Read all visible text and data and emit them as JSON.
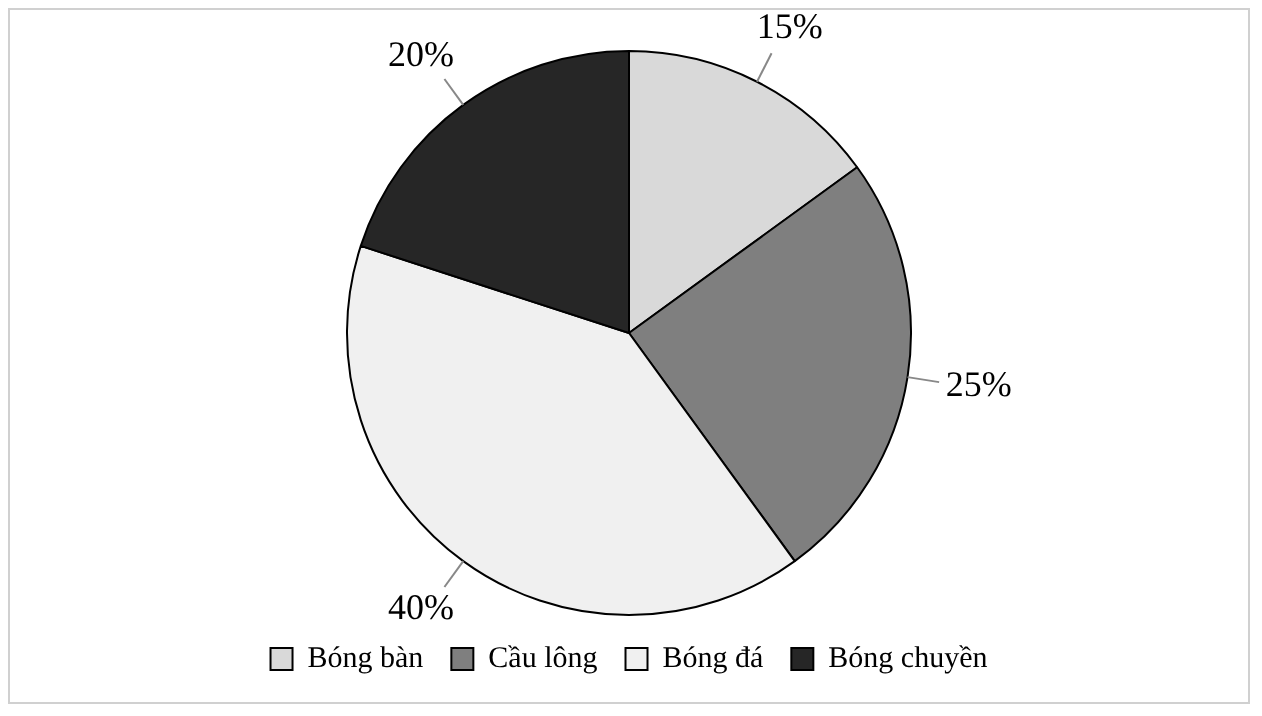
{
  "chart_data": {
    "type": "pie",
    "categories": [
      "Bóng bàn",
      "Cầu lông",
      "Bóng đá",
      "Bóng chuyền"
    ],
    "values": [
      15,
      25,
      40,
      20
    ],
    "colors": [
      "#d9d9d9",
      "#7f7f7f",
      "#f0f0f0",
      "#262626"
    ],
    "value_labels": [
      "15%",
      "25%",
      "40%",
      "20%"
    ],
    "legend": "bottom"
  }
}
